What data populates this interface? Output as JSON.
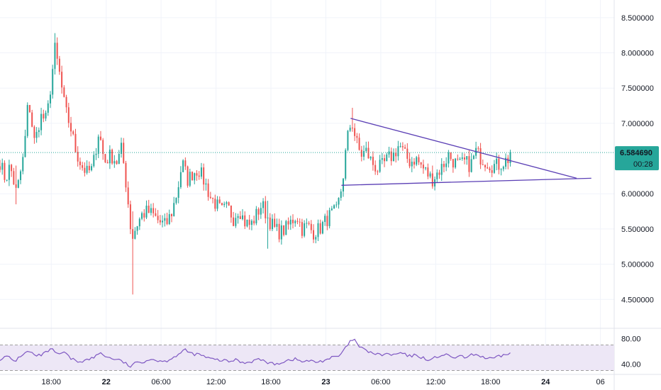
{
  "chart_data": {
    "type": "candlestick",
    "symbol_price_label": "6.584690",
    "countdown_label": "00:28",
    "colors": {
      "up": "#26a69a",
      "down": "#ef5350",
      "trendline": "#5b3fb5",
      "rsi_line": "#7e57c2",
      "rsi_band": "#ede7f6",
      "current_price_line": "#26a69a"
    },
    "price_axis": {
      "ylim": [
        4.1,
        8.75
      ],
      "ticks": [
        "8.500000",
        "8.000000",
        "7.500000",
        "7.000000",
        "6.000000",
        "5.500000",
        "5.000000",
        "4.500000"
      ],
      "tick_values": [
        8.5,
        8.0,
        7.5,
        7.0,
        6.0,
        5.5,
        5.0,
        4.5
      ]
    },
    "time_axis": {
      "labels": [
        "18:00",
        "22",
        "06:00",
        "12:00",
        "18:00",
        "23",
        "06:00",
        "12:00",
        "18:00",
        "24",
        "06"
      ],
      "bold": [
        false,
        true,
        false,
        false,
        false,
        true,
        false,
        false,
        false,
        true,
        false
      ],
      "positions_hours": [
        18,
        24,
        30,
        36,
        42,
        48,
        54,
        60,
        66,
        72,
        78
      ],
      "x_range_hours": [
        12.4,
        79.5
      ]
    },
    "current_price": 6.58469,
    "last_candle_hour": 68.3,
    "anchors": [
      [
        12.4,
        6.45
      ],
      [
        13.0,
        6.2
      ],
      [
        13.5,
        6.4
      ],
      [
        14.2,
        6.0
      ],
      [
        15.0,
        6.55
      ],
      [
        15.5,
        7.35
      ],
      [
        16.2,
        6.7
      ],
      [
        16.8,
        7.1
      ],
      [
        17.5,
        7.05
      ],
      [
        18.0,
        7.6
      ],
      [
        18.4,
        8.05
      ],
      [
        18.9,
        7.7
      ],
      [
        19.5,
        7.2
      ],
      [
        20.1,
        6.95
      ],
      [
        20.7,
        6.6
      ],
      [
        21.3,
        6.4
      ],
      [
        21.9,
        6.3
      ],
      [
        22.5,
        6.35
      ],
      [
        23.2,
        6.9
      ],
      [
        23.8,
        6.45
      ],
      [
        24.5,
        6.55
      ],
      [
        25.2,
        6.45
      ],
      [
        25.7,
        6.65
      ],
      [
        26.3,
        6.0
      ],
      [
        26.8,
        5.35
      ],
      [
        27.3,
        5.55
      ],
      [
        27.9,
        5.7
      ],
      [
        28.5,
        5.75
      ],
      [
        29.1,
        5.7
      ],
      [
        29.8,
        5.6
      ],
      [
        30.5,
        5.55
      ],
      [
        31.2,
        5.75
      ],
      [
        31.8,
        6.05
      ],
      [
        32.3,
        6.45
      ],
      [
        32.9,
        6.2
      ],
      [
        33.5,
        6.3
      ],
      [
        34.1,
        6.35
      ],
      [
        34.8,
        6.15
      ],
      [
        35.4,
        5.95
      ],
      [
        36.0,
        5.85
      ],
      [
        36.6,
        5.75
      ],
      [
        37.3,
        5.8
      ],
      [
        37.9,
        5.65
      ],
      [
        38.5,
        5.8
      ],
      [
        39.1,
        5.6
      ],
      [
        39.8,
        5.55
      ],
      [
        40.4,
        5.7
      ],
      [
        41.0,
        5.85
      ],
      [
        41.7,
        5.65
      ],
      [
        42.4,
        5.5
      ],
      [
        43.0,
        5.45
      ],
      [
        43.6,
        5.5
      ],
      [
        44.2,
        5.6
      ],
      [
        44.8,
        5.7
      ],
      [
        45.4,
        5.5
      ],
      [
        46.0,
        5.55
      ],
      [
        46.6,
        5.45
      ],
      [
        47.3,
        5.5
      ],
      [
        47.9,
        5.6
      ],
      [
        48.5,
        5.7
      ],
      [
        49.2,
        5.75
      ],
      [
        49.8,
        6.15
      ],
      [
        50.3,
        6.75
      ],
      [
        50.8,
        7.05
      ],
      [
        51.3,
        6.75
      ],
      [
        51.8,
        6.55
      ],
      [
        52.4,
        6.6
      ],
      [
        53.0,
        6.45
      ],
      [
        53.6,
        6.35
      ],
      [
        54.2,
        6.4
      ],
      [
        54.8,
        6.5
      ],
      [
        55.4,
        6.55
      ],
      [
        56.0,
        6.7
      ],
      [
        56.6,
        6.55
      ],
      [
        57.2,
        6.45
      ],
      [
        57.8,
        6.5
      ],
      [
        58.4,
        6.4
      ],
      [
        59.0,
        6.3
      ],
      [
        59.6,
        6.2
      ],
      [
        60.2,
        6.3
      ],
      [
        60.8,
        6.4
      ],
      [
        61.4,
        6.55
      ],
      [
        62.0,
        6.45
      ],
      [
        62.6,
        6.4
      ],
      [
        63.2,
        6.45
      ],
      [
        63.8,
        6.4
      ],
      [
        64.4,
        6.6
      ],
      [
        65.0,
        6.5
      ],
      [
        65.6,
        6.45
      ],
      [
        66.2,
        6.4
      ],
      [
        66.8,
        6.4
      ],
      [
        67.4,
        6.45
      ],
      [
        68.0,
        6.5
      ],
      [
        68.3,
        6.58
      ]
    ],
    "wick_extremes": [
      {
        "hour": 26.8,
        "low": 4.57,
        "high": 5.75
      },
      {
        "hour": 18.4,
        "low": 7.9,
        "high": 8.28
      },
      {
        "hour": 50.8,
        "low": 6.9,
        "high": 7.22
      },
      {
        "hour": 14.2,
        "low": 5.85,
        "high": 6.4
      },
      {
        "hour": 41.7,
        "low": 5.22,
        "high": 5.9
      },
      {
        "hour": 59.6,
        "low": 6.1,
        "high": 6.4
      },
      {
        "hour": 68.3,
        "low": 6.45,
        "high": 6.72
      }
    ],
    "trendlines": [
      {
        "x1": 50.7,
        "y1": 7.07,
        "x2": 75.4,
        "y2": 6.22
      },
      {
        "x1": 49.7,
        "y1": 6.12,
        "x2": 77.0,
        "y2": 6.22
      }
    ],
    "rsi": {
      "ticks": [
        "80.00",
        "40.00"
      ],
      "tick_values": [
        80,
        40
      ],
      "ylim": [
        25,
        95
      ],
      "band": [
        30,
        70
      ],
      "anchors": [
        [
          12.4,
          48
        ],
        [
          13.2,
          52
        ],
        [
          14.0,
          44
        ],
        [
          14.8,
          55
        ],
        [
          15.6,
          60
        ],
        [
          16.4,
          52
        ],
        [
          17.2,
          56
        ],
        [
          18.0,
          64
        ],
        [
          18.6,
          55
        ],
        [
          19.4,
          58
        ],
        [
          20.2,
          48
        ],
        [
          21.0,
          44
        ],
        [
          21.8,
          46
        ],
        [
          22.6,
          50
        ],
        [
          23.4,
          58
        ],
        [
          24.2,
          50
        ],
        [
          25.0,
          48
        ],
        [
          25.8,
          44
        ],
        [
          26.6,
          36
        ],
        [
          27.3,
          42
        ],
        [
          28.0,
          44
        ],
        [
          28.8,
          48
        ],
        [
          29.6,
          46
        ],
        [
          30.4,
          44
        ],
        [
          31.2,
          50
        ],
        [
          32.0,
          56
        ],
        [
          32.6,
          62
        ],
        [
          33.4,
          56
        ],
        [
          34.2,
          55
        ],
        [
          35.0,
          50
        ],
        [
          35.8,
          47
        ],
        [
          36.6,
          46
        ],
        [
          37.4,
          44
        ],
        [
          38.2,
          47
        ],
        [
          39.0,
          42
        ],
        [
          39.8,
          44
        ],
        [
          40.6,
          48
        ],
        [
          41.4,
          44
        ],
        [
          42.2,
          40
        ],
        [
          43.0,
          42
        ],
        [
          43.8,
          46
        ],
        [
          44.6,
          48
        ],
        [
          45.4,
          44
        ],
        [
          46.2,
          45
        ],
        [
          47.0,
          43
        ],
        [
          47.8,
          46
        ],
        [
          48.6,
          50
        ],
        [
          49.4,
          52
        ],
        [
          50.0,
          62
        ],
        [
          50.6,
          74
        ],
        [
          51.0,
          80
        ],
        [
          51.6,
          68
        ],
        [
          52.2,
          62
        ],
        [
          53.0,
          58
        ],
        [
          53.8,
          54
        ],
        [
          54.6,
          56
        ],
        [
          55.4,
          54
        ],
        [
          56.2,
          58
        ],
        [
          57.0,
          52
        ],
        [
          57.8,
          54
        ],
        [
          58.6,
          50
        ],
        [
          59.4,
          46
        ],
        [
          60.2,
          52
        ],
        [
          61.0,
          55
        ],
        [
          61.8,
          50
        ],
        [
          62.6,
          52
        ],
        [
          63.4,
          50
        ],
        [
          64.2,
          56
        ],
        [
          65.0,
          52
        ],
        [
          65.8,
          48
        ],
        [
          66.6,
          50
        ],
        [
          67.4,
          54
        ],
        [
          68.0,
          57
        ],
        [
          68.3,
          58
        ]
      ]
    }
  }
}
